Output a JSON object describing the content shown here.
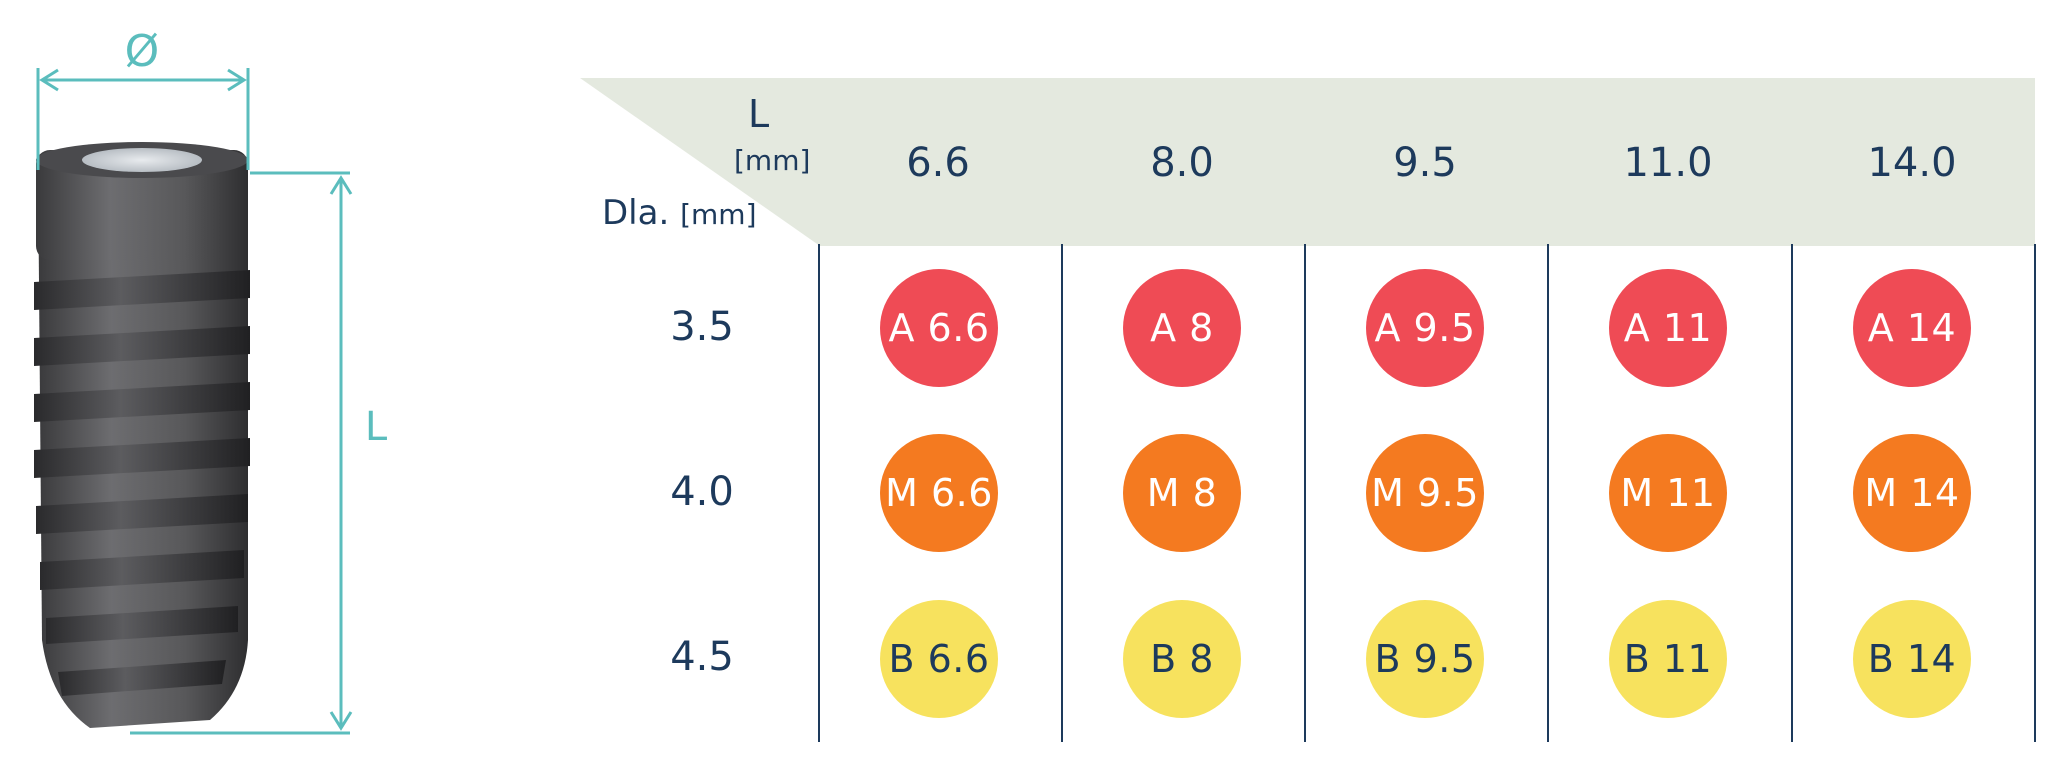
{
  "figure": {
    "diameter_symbol": "Ø",
    "length_symbol": "L"
  },
  "table": {
    "corner": {
      "length_label": "L",
      "length_unit": "[mm]",
      "diameter_label": "Dla.",
      "diameter_unit": "[mm]"
    },
    "columns": [
      "6.6",
      "8.0",
      "9.5",
      "11.0",
      "14.0"
    ],
    "rows": [
      {
        "label": "3.5",
        "color": "#ef4b55",
        "text_color": "#ffffff",
        "cells": [
          "A 6.6",
          "A 8",
          "A 9.5",
          "A 11",
          "A 14"
        ]
      },
      {
        "label": "4.0",
        "color": "#f47a20",
        "text_color": "#ffffff",
        "cells": [
          "M 6.6",
          "M 8",
          "M 9.5",
          "M 11",
          "M 14"
        ]
      },
      {
        "label": "4.5",
        "color": "#f7e25e",
        "text_color": "#1d3a5c",
        "cells": [
          "B 6.6",
          "B 8",
          "B 9.5",
          "B 11",
          "B 14"
        ]
      }
    ]
  },
  "colors": {
    "dimension_lines": "#5bbdbd",
    "header_band": "#e4e9df",
    "text": "#1d3a5c"
  }
}
